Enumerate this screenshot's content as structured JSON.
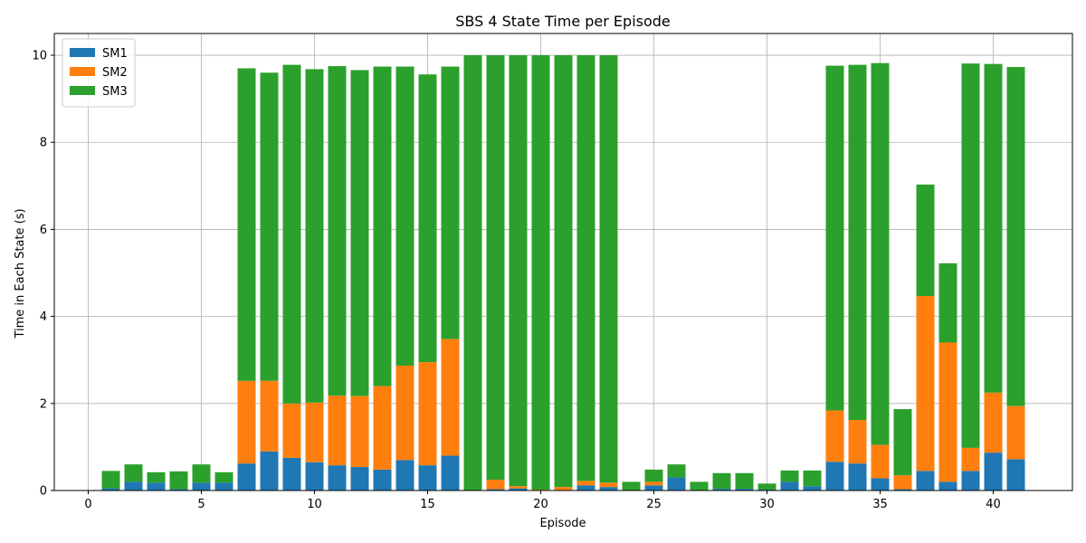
{
  "chart_data": {
    "type": "bar",
    "stacked": true,
    "title": "SBS 4 State Time per Episode",
    "xlabel": "Episode",
    "ylabel": "Time in Each State (s)",
    "xlim": [
      -1.5,
      43.5
    ],
    "ylim": [
      0,
      10.5
    ],
    "xticks": [
      0,
      5,
      10,
      15,
      20,
      25,
      30,
      35,
      40
    ],
    "yticks": [
      0,
      2,
      4,
      6,
      8,
      10
    ],
    "grid": true,
    "legend_position": "top-left",
    "x": [
      0,
      1,
      2,
      3,
      4,
      5,
      6,
      7,
      8,
      9,
      10,
      11,
      12,
      13,
      14,
      15,
      16,
      17,
      18,
      19,
      20,
      21,
      22,
      23,
      24,
      25,
      26,
      27,
      28,
      29,
      30,
      31,
      32,
      33,
      34,
      35,
      36,
      37,
      38,
      39,
      40,
      41
    ],
    "series": [
      {
        "name": "SM1",
        "color": "#1f77b4",
        "values": [
          0,
          0.05,
          0.2,
          0.18,
          0.03,
          0.18,
          0.18,
          0.62,
          0.9,
          0.75,
          0.65,
          0.58,
          0.54,
          0.48,
          0.7,
          0.58,
          0.8,
          0,
          0.03,
          0.05,
          0,
          0,
          0.12,
          0.08,
          0,
          0.12,
          0.3,
          0,
          0.04,
          0.04,
          0.02,
          0.2,
          0.1,
          0.66,
          0.62,
          0.28,
          0.03,
          0.45,
          0.2,
          0.45,
          0.87,
          0.72
        ]
      },
      {
        "name": "SM2",
        "color": "#ff7f0e",
        "values": [
          0,
          0,
          0,
          0,
          0,
          0,
          0,
          1.9,
          1.62,
          1.25,
          1.37,
          1.6,
          1.63,
          1.92,
          2.17,
          2.37,
          2.68,
          0,
          0.22,
          0.05,
          0.02,
          0.08,
          0.1,
          0.1,
          0,
          0.08,
          0,
          0,
          0,
          0,
          0,
          0,
          0,
          1.18,
          1.0,
          0.77,
          0.32,
          4.02,
          3.2,
          0.53,
          1.38,
          1.22
        ]
      },
      {
        "name": "SM3",
        "color": "#2ca02c",
        "values": [
          0,
          0.4,
          0.4,
          0.24,
          0.41,
          0.42,
          0.24,
          7.18,
          7.08,
          7.78,
          7.66,
          7.57,
          7.49,
          7.34,
          6.87,
          6.61,
          6.26,
          10.0,
          9.75,
          9.9,
          9.98,
          9.92,
          9.78,
          9.82,
          0.2,
          0.28,
          0.3,
          0.2,
          0.36,
          0.36,
          0.14,
          0.26,
          0.36,
          7.92,
          8.16,
          8.77,
          1.52,
          2.56,
          1.82,
          8.83,
          7.55,
          7.79
        ]
      }
    ]
  }
}
